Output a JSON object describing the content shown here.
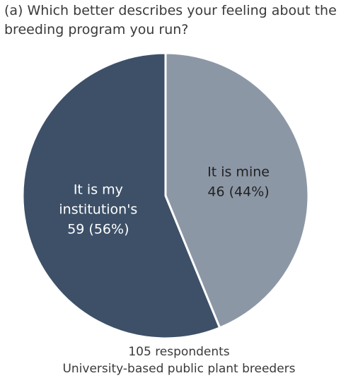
{
  "chart_data": {
    "type": "pie",
    "title_lines": [
      "(a) Which better describes your feeling about the",
      "breeding program you run?"
    ],
    "slices": [
      {
        "label_lines": [
          "It is mine",
          "46 (44%)"
        ],
        "value": 46,
        "percent": 44,
        "color": "#8c97a6",
        "text_color": "#222222"
      },
      {
        "label_lines": [
          "It is my",
          "institution's",
          "59 (56%)"
        ],
        "value": 59,
        "percent": 56,
        "color": "#3d5068",
        "text_color": "#ffffff"
      }
    ],
    "start_angle_deg": 0,
    "direction": "clockwise",
    "footer_lines": [
      "105 respondents",
      "University-based public plant breeders"
    ]
  }
}
